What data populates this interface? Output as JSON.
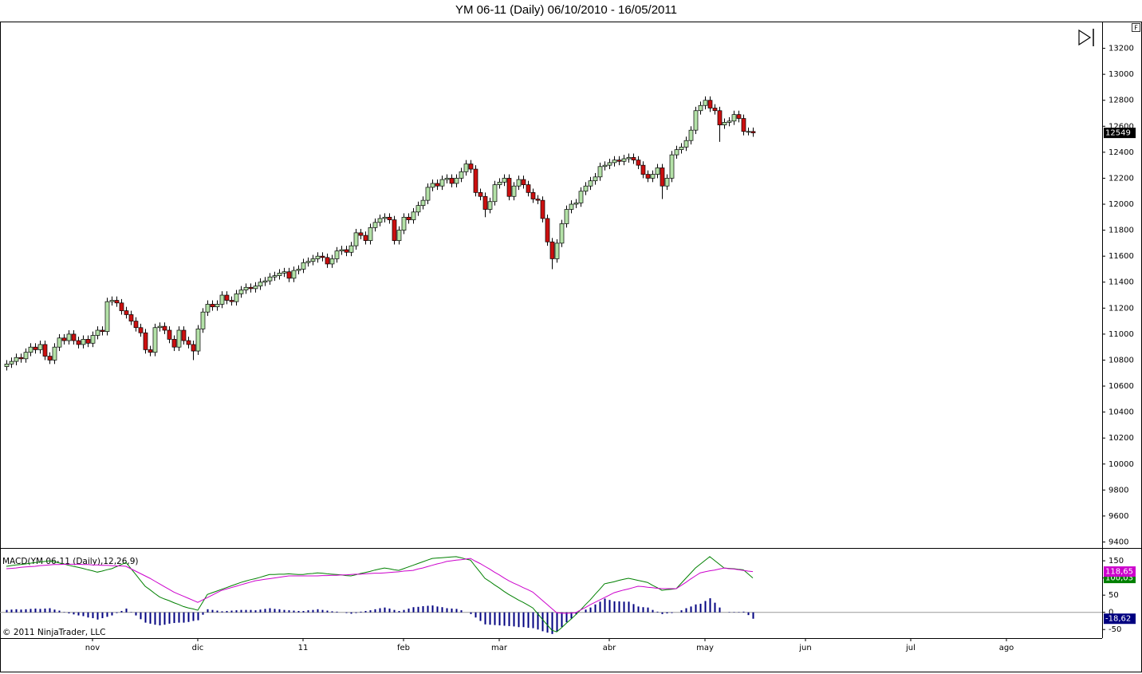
{
  "ui": {
    "f_button": "F"
  },
  "chart_data": [
    {
      "type": "candlestick",
      "title": "YM 06-11 (Daily)  06/10/2010 - 16/05/2011",
      "open": [
        10750,
        10770,
        10790,
        10820,
        10810,
        10860,
        10900,
        10880,
        10920,
        10830,
        10800,
        10900,
        10970,
        10950,
        11000,
        10950,
        10920,
        10960,
        10930,
        10990,
        11030,
        11020,
        11250,
        11260,
        11240,
        11180,
        11150,
        11100,
        11050,
        11010,
        10880,
        10860,
        11050,
        11060,
        11030,
        10960,
        10900,
        11030,
        10950,
        10920,
        10870,
        11040,
        11170,
        11230,
        11210,
        11230,
        11300,
        11260,
        11250,
        11310,
        11340,
        11360,
        11350,
        11370,
        11400,
        11410,
        11440,
        11450,
        11470,
        11480,
        11430,
        11490,
        11500,
        11550,
        11560,
        11580,
        11600,
        11590,
        11540,
        11580,
        11640,
        11650,
        11630,
        11680,
        11780,
        11760,
        11720,
        11820,
        11860,
        11890,
        11900,
        11880,
        11720,
        11800,
        11900,
        11880,
        11940,
        11990,
        12030,
        12130,
        12160,
        12140,
        12190,
        12200,
        12160,
        12200,
        12250,
        12310,
        12270,
        12090,
        12060,
        11960,
        12020,
        12150,
        12170,
        12200,
        12060,
        12140,
        12190,
        12150,
        12090,
        12040,
        12030,
        11890,
        11710,
        11580,
        11700,
        11850,
        11960,
        12000,
        12010,
        12100,
        12140,
        12180,
        12210,
        12290,
        12300,
        12320,
        12340,
        12330,
        12350,
        12360,
        12340,
        12300,
        12230,
        12200,
        12230,
        12280,
        12140,
        12200,
        12380,
        12420,
        12440,
        12490,
        12570,
        12720,
        12760,
        12800,
        12740,
        12720,
        12610,
        12630,
        12640,
        12690,
        12660,
        12560,
        12560
      ],
      "high": [
        10800,
        10820,
        10850,
        10850,
        10890,
        10930,
        10930,
        10950,
        10950,
        10860,
        10930,
        11000,
        11000,
        11030,
        11030,
        10980,
        10990,
        10990,
        11020,
        11060,
        11060,
        11280,
        11290,
        11290,
        11270,
        11210,
        11180,
        11130,
        11080,
        11040,
        10910,
        11080,
        11090,
        11090,
        11060,
        10990,
        11060,
        11060,
        10980,
        10950,
        11070,
        11200,
        11260,
        11260,
        11260,
        11330,
        11330,
        11290,
        11340,
        11370,
        11390,
        11390,
        11400,
        11430,
        11440,
        11470,
        11480,
        11500,
        11510,
        11510,
        11520,
        11530,
        11580,
        11590,
        11610,
        11630,
        11630,
        11620,
        11610,
        11670,
        11680,
        11680,
        11710,
        11810,
        11810,
        11790,
        11850,
        11890,
        11920,
        11930,
        11930,
        11910,
        11830,
        11930,
        11930,
        11970,
        12020,
        12060,
        12160,
        12190,
        12190,
        12220,
        12230,
        12230,
        12230,
        12280,
        12340,
        12340,
        12300,
        12120,
        12090,
        12050,
        12180,
        12200,
        12230,
        12230,
        12170,
        12220,
        12220,
        12180,
        12120,
        12070,
        12060,
        11920,
        11740,
        11730,
        11880,
        11990,
        12030,
        12040,
        12130,
        12170,
        12210,
        12240,
        12320,
        12330,
        12350,
        12370,
        12370,
        12380,
        12390,
        12390,
        12370,
        12330,
        12260,
        12260,
        12310,
        12310,
        12230,
        12410,
        12450,
        12470,
        12520,
        12600,
        12750,
        12790,
        12830,
        12830,
        12770,
        12750,
        12660,
        12670,
        12720,
        12720,
        12690,
        12590,
        12590
      ],
      "low": [
        10720,
        10740,
        10760,
        10780,
        10780,
        10830,
        10850,
        10850,
        10800,
        10770,
        10770,
        10870,
        10920,
        10920,
        10920,
        10890,
        10890,
        10900,
        10900,
        10960,
        10990,
        10990,
        11220,
        11210,
        11150,
        11120,
        11070,
        11020,
        10980,
        10850,
        10830,
        10830,
        11020,
        11000,
        10930,
        10870,
        10870,
        10920,
        10890,
        10800,
        10840,
        11010,
        11140,
        11180,
        11180,
        11200,
        11230,
        11220,
        11220,
        11280,
        11310,
        11320,
        11320,
        11340,
        11370,
        11380,
        11410,
        11420,
        11440,
        11400,
        11400,
        11460,
        11470,
        11520,
        11530,
        11550,
        11560,
        11510,
        11510,
        11550,
        11610,
        11600,
        11600,
        11650,
        11730,
        11690,
        11690,
        11790,
        11830,
        11860,
        11850,
        11690,
        11690,
        11770,
        11850,
        11850,
        11910,
        11960,
        12000,
        12100,
        12110,
        12110,
        12160,
        12130,
        12130,
        12170,
        12220,
        12240,
        12060,
        12030,
        11900,
        11930,
        11990,
        12120,
        12140,
        12030,
        12030,
        12110,
        12120,
        12060,
        12010,
        12000,
        11860,
        11680,
        11500,
        11550,
        11670,
        11820,
        11930,
        11970,
        11980,
        12070,
        12110,
        12150,
        12180,
        12260,
        12270,
        12290,
        12300,
        12300,
        12320,
        12310,
        12270,
        12200,
        12170,
        12170,
        12200,
        12040,
        12110,
        12170,
        12350,
        12390,
        12410,
        12460,
        12540,
        12690,
        12730,
        12710,
        12690,
        12480,
        12580,
        12600,
        12610,
        12630,
        12530,
        12530,
        12519
      ],
      "close": [
        10770,
        10790,
        10820,
        10810,
        10860,
        10900,
        10880,
        10920,
        10830,
        10800,
        10900,
        10970,
        10950,
        11000,
        10950,
        10920,
        10960,
        10930,
        10990,
        11030,
        11020,
        11250,
        11260,
        11240,
        11180,
        11150,
        11100,
        11050,
        11010,
        10880,
        10860,
        11050,
        11060,
        11030,
        10960,
        10900,
        11030,
        10950,
        10920,
        10870,
        11040,
        11170,
        11230,
        11210,
        11230,
        11300,
        11260,
        11250,
        11310,
        11340,
        11360,
        11350,
        11370,
        11400,
        11410,
        11440,
        11450,
        11470,
        11480,
        11430,
        11490,
        11500,
        11550,
        11560,
        11580,
        11600,
        11590,
        11540,
        11580,
        11640,
        11650,
        11630,
        11680,
        11780,
        11760,
        11720,
        11820,
        11860,
        11890,
        11900,
        11880,
        11720,
        11800,
        11900,
        11880,
        11940,
        11990,
        12030,
        12130,
        12160,
        12140,
        12190,
        12200,
        12160,
        12200,
        12250,
        12310,
        12270,
        12090,
        12060,
        11960,
        12020,
        12150,
        12170,
        12200,
        12060,
        12140,
        12190,
        12150,
        12090,
        12040,
        12030,
        11890,
        11710,
        11580,
        11700,
        11850,
        11960,
        12000,
        12010,
        12100,
        12140,
        12180,
        12210,
        12290,
        12300,
        12320,
        12340,
        12330,
        12350,
        12360,
        12340,
        12300,
        12230,
        12200,
        12230,
        12280,
        12140,
        12200,
        12380,
        12420,
        12440,
        12490,
        12570,
        12720,
        12760,
        12800,
        12740,
        12720,
        12610,
        12630,
        12640,
        12690,
        12660,
        12560,
        12560,
        12549
      ],
      "up_color": "#b4e2a8",
      "down_color": "#cc1010",
      "badge_color": "#000000",
      "xlim": [
        -1.33,
        229
      ],
      "ylim": [
        9360,
        13400
      ],
      "yticks": [
        9400,
        9600,
        9800,
        10000,
        10200,
        10400,
        10600,
        10800,
        11000,
        11200,
        11400,
        11600,
        11800,
        12000,
        12200,
        12400,
        12600,
        12800,
        13000,
        13200
      ]
    },
    {
      "type": "macd",
      "title": "MACD(YM 06-11 (Daily),12,26,9)",
      "series": [
        {
          "style": "line",
          "color": "#008000",
          "last_label": "100,03",
          "values": [
            134,
            136,
            138,
            139,
            141,
            143,
            145,
            146,
            148,
            150,
            147,
            144,
            141,
            137,
            134,
            131,
            128,
            124,
            121,
            117,
            120,
            124,
            127,
            133,
            139,
            145,
            128,
            111,
            93,
            76,
            66,
            55,
            45,
            39,
            34,
            28,
            23,
            17,
            13,
            10,
            6,
            29,
            52,
            57,
            62,
            67,
            72,
            77,
            82,
            87,
            91,
            95,
            98,
            102,
            106,
            110,
            110,
            111,
            111,
            112,
            111,
            110,
            110,
            112,
            113,
            115,
            114,
            112,
            111,
            110,
            109,
            107,
            106,
            109,
            113,
            116,
            119,
            123,
            126,
            129,
            127,
            124,
            122,
            127,
            132,
            137,
            142,
            147,
            152,
            157,
            158,
            159,
            160,
            161,
            162,
            159,
            155,
            152,
            134,
            117,
            99,
            90,
            80,
            71,
            61,
            52,
            44,
            36,
            29,
            21,
            13,
            -3,
            -20,
            -36,
            -52,
            -57,
            -45,
            -32,
            -20,
            -7,
            7,
            22,
            36,
            52,
            67,
            83,
            86,
            89,
            93,
            96,
            99,
            96,
            93,
            90,
            87,
            79,
            72,
            64,
            66,
            67,
            69,
            84,
            99,
            114,
            129,
            140,
            151,
            162,
            151,
            140,
            129,
            128,
            127,
            125,
            124,
            112,
            100.03
          ]
        },
        {
          "style": "line",
          "color": "#cc00cc",
          "last_label": "118,65",
          "values": [
            127,
            128,
            129,
            131,
            132,
            133,
            134,
            136,
            137,
            138,
            139,
            139,
            140,
            140,
            140,
            140,
            139,
            139,
            138,
            138,
            137,
            137,
            136,
            135,
            135,
            134,
            127,
            120,
            113,
            106,
            99,
            91,
            83,
            75,
            67,
            59,
            53,
            47,
            41,
            35,
            29,
            36,
            43,
            50,
            57,
            64,
            68,
            72,
            76,
            80,
            84,
            88,
            92,
            94,
            96,
            98,
            100,
            102,
            104,
            106,
            106,
            106,
            106,
            106,
            106,
            106,
            107,
            107,
            108,
            108,
            109,
            109,
            110,
            111,
            111,
            112,
            113,
            114,
            114,
            115,
            116,
            117,
            118,
            120,
            121,
            122,
            126,
            129,
            133,
            137,
            141,
            144,
            148,
            150,
            152,
            153,
            155,
            157,
            149,
            142,
            134,
            126,
            117,
            109,
            100,
            92,
            85,
            79,
            72,
            66,
            59,
            47,
            35,
            23,
            11,
            -1,
            -2,
            -3,
            -2,
            -1,
            7,
            14,
            22,
            29,
            36,
            43,
            50,
            57,
            61,
            65,
            68,
            72,
            76,
            75,
            73,
            72,
            70,
            69,
            69,
            69,
            69,
            78,
            87,
            97,
            106,
            115,
            118,
            121,
            123,
            126,
            129,
            127,
            126,
            124,
            122,
            120,
            118.65
          ]
        },
        {
          "style": "bar",
          "color": "#000080",
          "last_label": "-18,62",
          "values": [
            7,
            8,
            9,
            8,
            9,
            10,
            11,
            10,
            11,
            12,
            8,
            5,
            1,
            -3,
            -6,
            -9,
            -11,
            -15,
            -17,
            -21,
            -17,
            -13,
            -9,
            -2,
            4,
            11,
            1,
            -9,
            -20,
            -30,
            -33,
            -36,
            -38,
            -36,
            -33,
            -31,
            -30,
            -30,
            -28,
            -25,
            -23,
            -7,
            9,
            7,
            5,
            3,
            4,
            5,
            6,
            7,
            7,
            7,
            6,
            8,
            10,
            12,
            10,
            9,
            7,
            6,
            5,
            4,
            4,
            6,
            7,
            9,
            7,
            5,
            3,
            2,
            0,
            -2,
            -4,
            -2,
            2,
            4,
            6,
            9,
            12,
            14,
            11,
            7,
            4,
            7,
            11,
            15,
            16,
            18,
            19,
            20,
            17,
            15,
            12,
            11,
            10,
            6,
            0,
            -5,
            -15,
            -25,
            -35,
            -36,
            -37,
            -38,
            -39,
            -40,
            -41,
            -43,
            -43,
            -45,
            -46,
            -50,
            -55,
            -59,
            -63,
            -56,
            -43,
            -29,
            -18,
            -6,
            0,
            8,
            14,
            23,
            31,
            40,
            36,
            32,
            32,
            31,
            31,
            24,
            17,
            15,
            14,
            7,
            2,
            -5,
            -3,
            -2,
            0,
            6,
            12,
            17,
            23,
            25,
            33,
            41,
            28,
            14,
            0,
            1,
            1,
            1,
            2,
            -8,
            -18.62
          ]
        }
      ],
      "zero_line": true,
      "xlim": [
        -1.33,
        229
      ],
      "ylim": [
        -75,
        185
      ],
      "yticks": [
        -50,
        0,
        50,
        100,
        150
      ],
      "xticks": [
        {
          "value": 18,
          "label": "nov"
        },
        {
          "value": 40,
          "label": "dic"
        },
        {
          "value": 62,
          "label": "11"
        },
        {
          "value": 83,
          "label": "feb"
        },
        {
          "value": 103,
          "label": "mar"
        },
        {
          "value": 126,
          "label": "abr"
        },
        {
          "value": 146,
          "label": "may"
        },
        {
          "value": 167,
          "label": "jun"
        },
        {
          "value": 189,
          "label": "jul"
        },
        {
          "value": 209,
          "label": "ago"
        }
      ],
      "annotation": "© 2011 NinjaTrader, LLC"
    }
  ]
}
